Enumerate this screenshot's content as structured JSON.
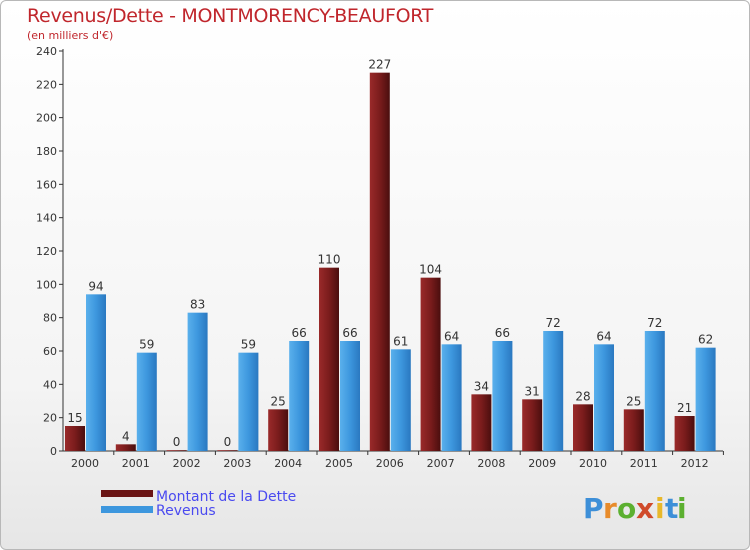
{
  "title": "Revenus/Dette - MONTMORENCY-BEAUFORT",
  "subtitle": "(en milliers d'€)",
  "colors": {
    "dette": "#7a1c1c",
    "revenus": "#3d97de",
    "title": "#c0262c",
    "legend_text": "#4a4af0"
  },
  "logo": {
    "text": "Proxiti",
    "letters": [
      "P",
      "r",
      "o",
      "x",
      "i",
      "t",
      "i"
    ],
    "letter_colors": [
      "#3d8fd8",
      "#e88b2a",
      "#5cb030",
      "#d04a2a",
      "#e8b82a",
      "#3d8fd8",
      "#5cb030"
    ]
  },
  "chart_data": {
    "type": "bar",
    "title": "Revenus/Dette - MONTMORENCY-BEAUFORT",
    "subtitle": "(en milliers d'€)",
    "categories": [
      "2000",
      "2001",
      "2002",
      "2003",
      "2004",
      "2005",
      "2006",
      "2007",
      "2008",
      "2009",
      "2010",
      "2011",
      "2012"
    ],
    "series": [
      {
        "name": "Montant de la Dette",
        "values": [
          15,
          4,
          0,
          0,
          25,
          110,
          227,
          104,
          34,
          31,
          28,
          25,
          21
        ]
      },
      {
        "name": "Revenus",
        "values": [
          94,
          59,
          83,
          59,
          66,
          66,
          61,
          64,
          66,
          72,
          64,
          72,
          62
        ]
      }
    ],
    "ylim": [
      0,
      240
    ],
    "yticks": [
      0,
      20,
      40,
      60,
      80,
      100,
      120,
      140,
      160,
      180,
      200,
      220,
      240
    ],
    "grid": false,
    "legend": "bottom-left",
    "data_labels": true
  }
}
